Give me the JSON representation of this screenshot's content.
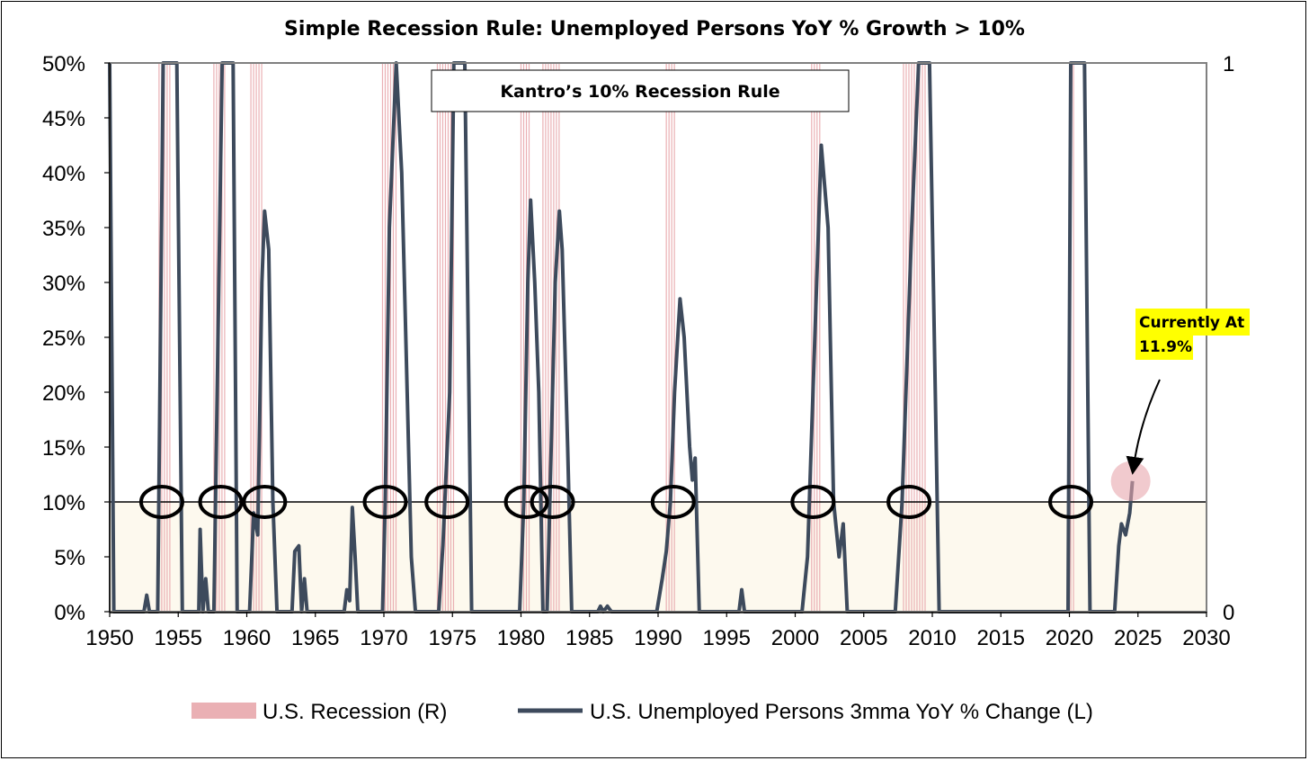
{
  "chart_data": {
    "type": "line",
    "title": "Simple Recession Rule: Unemployed Persons YoY % Growth > 10%",
    "x_ticks": [
      "1950",
      "1955",
      "1960",
      "1965",
      "1970",
      "1975",
      "1980",
      "1985",
      "1990",
      "1995",
      "2000",
      "2005",
      "2010",
      "2015",
      "2020",
      "2025",
      "2030"
    ],
    "y_left_ticks": [
      "0%",
      "5%",
      "10%",
      "15%",
      "20%",
      "25%",
      "30%",
      "35%",
      "40%",
      "45%",
      "50%"
    ],
    "y_right_ticks": [
      "0",
      "1"
    ],
    "xlim": [
      1950,
      2030
    ],
    "ylim_left": [
      0,
      50
    ],
    "ylim_right": [
      0,
      1
    ],
    "threshold_percent": 10,
    "annotation_box": "Kantro’s 10% Recession Rule",
    "current_label_line1": "Currently At",
    "current_label_line2": "11.9%",
    "current_value": {
      "x": 2024.6,
      "y": 11.9
    },
    "circle_markers_years": [
      1953.8,
      1958.1,
      1961.3,
      1970.1,
      1974.6,
      1980.4,
      1982.3,
      1991.1,
      2001.3,
      2008.3,
      2020.1
    ],
    "legend": {
      "recession": "U.S. Recession (R)",
      "line": "U.S. Unemployed Persons 3mma YoY % Change (L)"
    },
    "series": [
      {
        "name": "U.S. Recession (R)",
        "periods": [
          [
            1953.6,
            1954.4
          ],
          [
            1957.6,
            1958.4
          ],
          [
            1960.3,
            1961.2
          ],
          [
            1969.9,
            1970.9
          ],
          [
            1973.9,
            1975.2
          ],
          [
            1980.0,
            1980.6
          ],
          [
            1981.6,
            1982.9
          ],
          [
            1990.6,
            1991.3
          ],
          [
            2001.2,
            2001.9
          ],
          [
            2007.9,
            2009.5
          ],
          [
            2020.1,
            2020.4
          ]
        ]
      },
      {
        "name": "U.S. Unemployed Persons 3mma YoY % Change (L)",
        "points": [
          [
            1950.0,
            50
          ],
          [
            1950.3,
            0
          ],
          [
            1952.5,
            0
          ],
          [
            1952.7,
            1.5
          ],
          [
            1952.9,
            0
          ],
          [
            1953.5,
            0
          ],
          [
            1953.9,
            50
          ],
          [
            1954.9,
            50
          ],
          [
            1955.3,
            0
          ],
          [
            1956.5,
            0
          ],
          [
            1956.6,
            7.5
          ],
          [
            1956.8,
            0
          ],
          [
            1957.0,
            3
          ],
          [
            1957.2,
            0
          ],
          [
            1957.6,
            0
          ],
          [
            1958.2,
            50
          ],
          [
            1959.0,
            50
          ],
          [
            1959.3,
            0
          ],
          [
            1960.2,
            0
          ],
          [
            1960.5,
            9
          ],
          [
            1960.8,
            7
          ],
          [
            1961.1,
            30
          ],
          [
            1961.3,
            36.5
          ],
          [
            1961.6,
            33
          ],
          [
            1961.9,
            10
          ],
          [
            1962.2,
            0
          ],
          [
            1963.3,
            0
          ],
          [
            1963.5,
            5.5
          ],
          [
            1963.8,
            6
          ],
          [
            1964.0,
            0
          ],
          [
            1964.2,
            3
          ],
          [
            1964.4,
            0
          ],
          [
            1967.1,
            0
          ],
          [
            1967.3,
            2
          ],
          [
            1967.5,
            1
          ],
          [
            1967.7,
            9.5
          ],
          [
            1967.9,
            5
          ],
          [
            1968.1,
            0
          ],
          [
            1969.9,
            0
          ],
          [
            1970.1,
            10
          ],
          [
            1970.4,
            35
          ],
          [
            1970.9,
            50
          ],
          [
            1971.3,
            40
          ],
          [
            1971.7,
            20
          ],
          [
            1972.0,
            5
          ],
          [
            1972.3,
            0
          ],
          [
            1974.0,
            0
          ],
          [
            1974.3,
            6
          ],
          [
            1974.8,
            20
          ],
          [
            1975.1,
            50
          ],
          [
            1975.9,
            50
          ],
          [
            1976.4,
            0
          ],
          [
            1979.9,
            0
          ],
          [
            1980.2,
            10
          ],
          [
            1980.5,
            30
          ],
          [
            1980.7,
            37.5
          ],
          [
            1981.0,
            30
          ],
          [
            1981.3,
            20
          ],
          [
            1981.6,
            0
          ],
          [
            1981.9,
            0
          ],
          [
            1982.2,
            15
          ],
          [
            1982.5,
            30
          ],
          [
            1982.8,
            36.5
          ],
          [
            1983.0,
            33
          ],
          [
            1983.4,
            15
          ],
          [
            1983.7,
            0
          ],
          [
            1985.6,
            0
          ],
          [
            1985.8,
            0.5
          ],
          [
            1986.0,
            0
          ],
          [
            1986.3,
            0.5
          ],
          [
            1986.6,
            0
          ],
          [
            1989.9,
            0
          ],
          [
            1990.3,
            3
          ],
          [
            1990.6,
            5.5
          ],
          [
            1990.9,
            10
          ],
          [
            1991.2,
            20
          ],
          [
            1991.6,
            28.5
          ],
          [
            1991.9,
            25
          ],
          [
            1992.3,
            15
          ],
          [
            1992.5,
            12
          ],
          [
            1992.7,
            14
          ],
          [
            1993.0,
            0
          ],
          [
            1995.9,
            0
          ],
          [
            1996.1,
            2
          ],
          [
            1996.3,
            0
          ],
          [
            2000.5,
            0
          ],
          [
            2000.9,
            5
          ],
          [
            2001.3,
            20
          ],
          [
            2001.9,
            42.5
          ],
          [
            2002.4,
            35
          ],
          [
            2002.8,
            10
          ],
          [
            2003.2,
            5
          ],
          [
            2003.5,
            8
          ],
          [
            2003.8,
            0
          ],
          [
            2007.3,
            0
          ],
          [
            2007.8,
            10
          ],
          [
            2008.5,
            35
          ],
          [
            2009.0,
            50
          ],
          [
            2009.8,
            50
          ],
          [
            2010.5,
            0
          ],
          [
            2019.9,
            0
          ],
          [
            2020.1,
            50
          ],
          [
            2021.1,
            50
          ],
          [
            2021.5,
            0
          ],
          [
            2023.3,
            0
          ],
          [
            2023.6,
            6
          ],
          [
            2023.8,
            8
          ],
          [
            2024.1,
            7
          ],
          [
            2024.4,
            9
          ],
          [
            2024.6,
            11.9
          ]
        ]
      }
    ]
  }
}
